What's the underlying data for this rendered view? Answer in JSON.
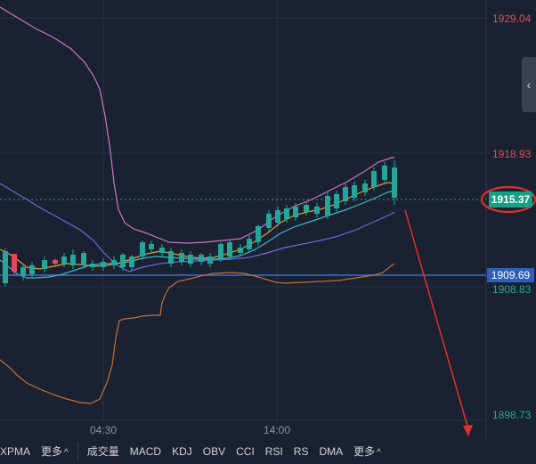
{
  "price_axis": {
    "labels": [
      {
        "text": "1929.04",
        "color": "#e04a5a"
      },
      {
        "text": "1918.93",
        "color": "#e04a5a"
      },
      {
        "text": "1908.83",
        "color": "#26a69a"
      },
      {
        "text": "1898.73",
        "color": "#26a69a"
      }
    ],
    "current_price": "1915.37",
    "line_price": "1909.69"
  },
  "time_axis": {
    "labels": [
      "04:30",
      "14:00"
    ]
  },
  "toolbar": {
    "left_indicator": "XPMA",
    "more_label_1": "更多",
    "items": [
      "成交量",
      "MACD",
      "KDJ",
      "OBV",
      "CCI",
      "RSI",
      "RS",
      "DMA"
    ],
    "more_label_2": "更多"
  },
  "colors": {
    "background": "#1a2130",
    "up": "#e04a5a",
    "down": "#26a69a",
    "annotation": "#e03030",
    "horizontal_line": "#3a6fd8"
  }
}
